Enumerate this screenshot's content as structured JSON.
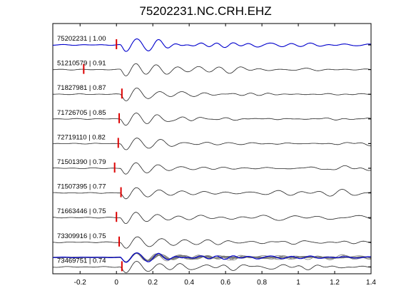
{
  "chart_data": {
    "type": "line",
    "title": "75202231.NC.CRH.EHZ",
    "xlabel": "",
    "ylabel": "",
    "xlim": [
      -0.35,
      1.4
    ],
    "xticks": [
      "-0.2",
      "0",
      "0.2",
      "0.4",
      "0.6",
      "0.8",
      "1",
      "1.2",
      "1.4"
    ],
    "xtick_values": [
      -0.2,
      0,
      0.2,
      0.4,
      0.6,
      0.8,
      1.0,
      1.2,
      1.4
    ],
    "grid": false,
    "colors": {
      "reference": "#0000cc",
      "trace": "#222222",
      "overlay": "#777777",
      "pick": "#dd0000"
    },
    "series": [
      {
        "label": "75202231 | 1.00",
        "pick_time": 0.0,
        "color": "blue",
        "freq": 8.2,
        "phase": 0.1
      },
      {
        "label": "51210579 | 0.91",
        "pick_time": -0.18,
        "color": "black",
        "freq": 8.6,
        "phase": 0.7
      },
      {
        "label": "71827981 | 0.87",
        "pick_time": 0.03,
        "color": "black",
        "freq": 8.0,
        "phase": 1.3
      },
      {
        "label": "71726705 | 0.85",
        "pick_time": 0.015,
        "color": "black",
        "freq": 8.4,
        "phase": 1.9
      },
      {
        "label": "72719110 | 0.82",
        "pick_time": 0.01,
        "color": "black",
        "freq": 7.9,
        "phase": 2.5
      },
      {
        "label": "71501390 | 0.79",
        "pick_time": -0.01,
        "color": "black",
        "freq": 8.3,
        "phase": 3.1
      },
      {
        "label": "71507395 | 0.77",
        "pick_time": 0.025,
        "color": "black",
        "freq": 8.1,
        "phase": 3.7
      },
      {
        "label": "71663446 | 0.75",
        "pick_time": 0.0,
        "color": "black",
        "freq": 8.5,
        "phase": 4.3
      },
      {
        "label": "73309916 | 0.75",
        "pick_time": 0.015,
        "color": "black",
        "freq": 7.8,
        "phase": 4.9
      },
      {
        "label": "73469751 | 0.74",
        "pick_time": 0.03,
        "color": "black",
        "freq": 8.2,
        "phase": 5.5
      }
    ],
    "overlay": {
      "description_hidden": true
    }
  }
}
